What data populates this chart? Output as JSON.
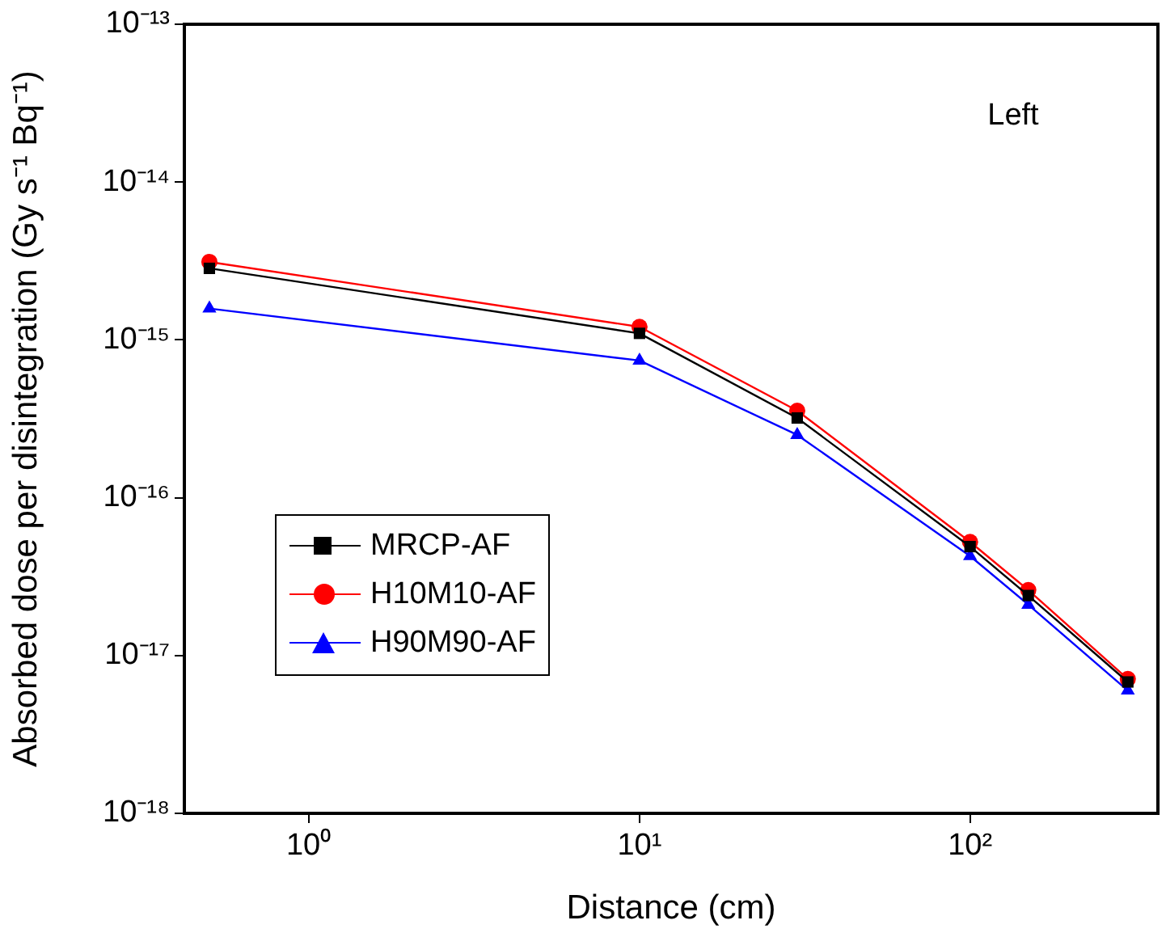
{
  "chart_data": {
    "type": "line",
    "xlabel": "Distance (cm)",
    "ylabel": "Absorbed dose per disintegration (Gy s⁻¹ Bq⁻¹)",
    "annotations": [
      "Left"
    ],
    "log": "xy",
    "x": [
      0.5,
      10,
      30,
      100,
      150,
      300
    ],
    "xlim": [
      0.42,
      370
    ],
    "ylim": [
      1e-18,
      1e-13
    ],
    "xticks": [
      {
        "value": 1,
        "label": "10⁰"
      },
      {
        "value": 10,
        "label": "10¹"
      },
      {
        "value": 100,
        "label": "10²"
      }
    ],
    "yticks": [
      {
        "value": 1e-18,
        "label": "10⁻¹⁸"
      },
      {
        "value": 1e-17,
        "label": "10⁻¹⁷"
      },
      {
        "value": 1e-16,
        "label": "10⁻¹⁶"
      },
      {
        "value": 1e-15,
        "label": "10⁻¹⁵"
      },
      {
        "value": 1e-14,
        "label": "10⁻¹⁴"
      },
      {
        "value": 1e-13,
        "label": "10⁻¹³"
      }
    ],
    "grid": false,
    "legend": "bottom left",
    "line_style": "solid",
    "series": [
      {
        "name": "MRCP-AF",
        "color": "#000000",
        "marker": "square",
        "values": [
          2.84e-15,
          1.1e-15,
          3.2e-16,
          4.9e-17,
          2.4e-17,
          6.8e-18
        ]
      },
      {
        "name": "H10M10-AF",
        "color": "#ff0000",
        "marker": "circle",
        "values": [
          3.12e-15,
          1.21e-15,
          3.56e-16,
          5.25e-17,
          2.6e-17,
          7.1e-18
        ]
      },
      {
        "name": "H90M90-AF",
        "color": "#0000ff",
        "marker": "triangle",
        "values": [
          1.58e-15,
          7.4e-16,
          2.5e-16,
          4.27e-17,
          2.1e-17,
          6e-18
        ]
      }
    ]
  }
}
